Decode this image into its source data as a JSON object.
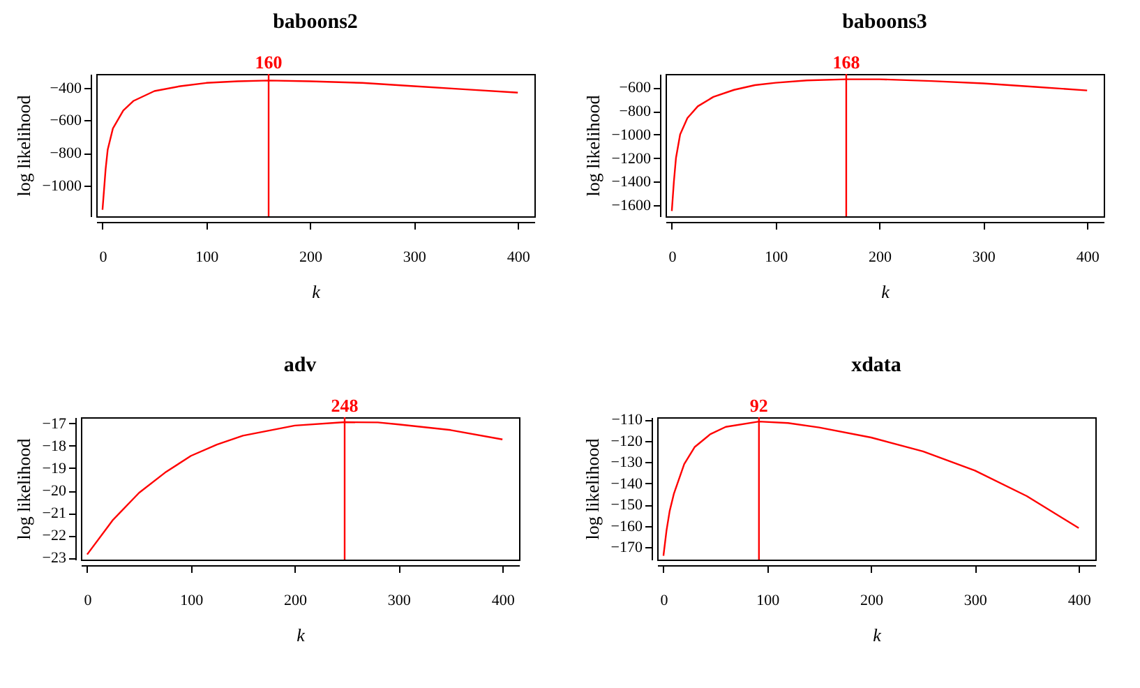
{
  "chart_data": [
    {
      "type": "line",
      "title": "baboons2",
      "xlabel": "k",
      "ylabel": "log likelihood",
      "x": [
        0,
        3,
        5,
        10,
        20,
        30,
        50,
        75,
        100,
        130,
        160,
        200,
        250,
        300,
        350,
        400
      ],
      "series": [
        {
          "color": "#ff0000",
          "values": [
            -1150,
            -900,
            -780,
            -650,
            -540,
            -480,
            -420,
            -390,
            -370,
            -360,
            -355,
            -360,
            -370,
            -390,
            -410,
            -430
          ]
        }
      ],
      "xlim": [
        -6,
        416
      ],
      "xticks": [
        0,
        100,
        200,
        300,
        400
      ],
      "ylim": [
        -1190,
        -315
      ],
      "yticks": [
        -1000,
        -800,
        -600,
        -400
      ],
      "ref_lines": [
        {
          "axis": "x",
          "value": 160,
          "label": "160",
          "color": "#ff0000"
        }
      ]
    },
    {
      "type": "line",
      "title": "baboons3",
      "xlabel": "k",
      "ylabel": "log likelihood",
      "x": [
        0,
        2,
        4,
        8,
        15,
        25,
        40,
        60,
        80,
        100,
        130,
        168,
        200,
        250,
        300,
        350,
        400
      ],
      "series": [
        {
          "color": "#ff0000",
          "values": [
            -1650,
            -1400,
            -1200,
            -1000,
            -860,
            -760,
            -680,
            -620,
            -580,
            -560,
            -540,
            -530,
            -530,
            -545,
            -565,
            -595,
            -625
          ]
        }
      ],
      "xlim": [
        -6,
        416
      ],
      "xticks": [
        0,
        100,
        200,
        300,
        400
      ],
      "ylim": [
        -1695,
        -485
      ],
      "yticks": [
        -1600,
        -1400,
        -1200,
        -1000,
        -800,
        -600
      ],
      "ref_lines": [
        {
          "axis": "x",
          "value": 168,
          "label": "168",
          "color": "#ff0000"
        }
      ]
    },
    {
      "type": "line",
      "title": "adv",
      "xlabel": "k",
      "ylabel": "log likelihood",
      "x": [
        0,
        25,
        50,
        75,
        100,
        125,
        150,
        200,
        248,
        280,
        300,
        350,
        400
      ],
      "series": [
        {
          "color": "#ff0000",
          "values": [
            -22.85,
            -21.3,
            -20.1,
            -19.2,
            -18.45,
            -17.95,
            -17.55,
            -17.1,
            -16.95,
            -16.96,
            -17.05,
            -17.3,
            -17.72
          ]
        }
      ],
      "xlim": [
        -6,
        416
      ],
      "xticks": [
        0,
        100,
        200,
        300,
        400
      ],
      "ylim": [
        -23.08,
        -16.73
      ],
      "yticks": [
        -23,
        -22,
        -21,
        -20,
        -19,
        -18,
        -17
      ],
      "ref_lines": [
        {
          "axis": "x",
          "value": 248,
          "label": "248",
          "color": "#ff0000"
        }
      ]
    },
    {
      "type": "line",
      "title": "xdata",
      "xlabel": "k",
      "ylabel": "log likelihood",
      "x": [
        0,
        3,
        6,
        10,
        20,
        30,
        45,
        60,
        92,
        120,
        150,
        200,
        250,
        300,
        350,
        400
      ],
      "series": [
        {
          "color": "#ff0000",
          "values": [
            -174,
            -162,
            -153,
            -145,
            -131,
            -123,
            -117,
            -113.5,
            -111,
            -111.7,
            -113.8,
            -118.5,
            -125,
            -134,
            -146,
            -161
          ]
        }
      ],
      "xlim": [
        -6,
        416
      ],
      "xticks": [
        0,
        100,
        200,
        300,
        400
      ],
      "ylim": [
        -175.8,
        -109
      ],
      "yticks": [
        -170,
        -160,
        -150,
        -140,
        -130,
        -120,
        -110
      ],
      "ref_lines": [
        {
          "axis": "x",
          "value": 92,
          "label": "92",
          "color": "#ff0000"
        }
      ]
    }
  ]
}
